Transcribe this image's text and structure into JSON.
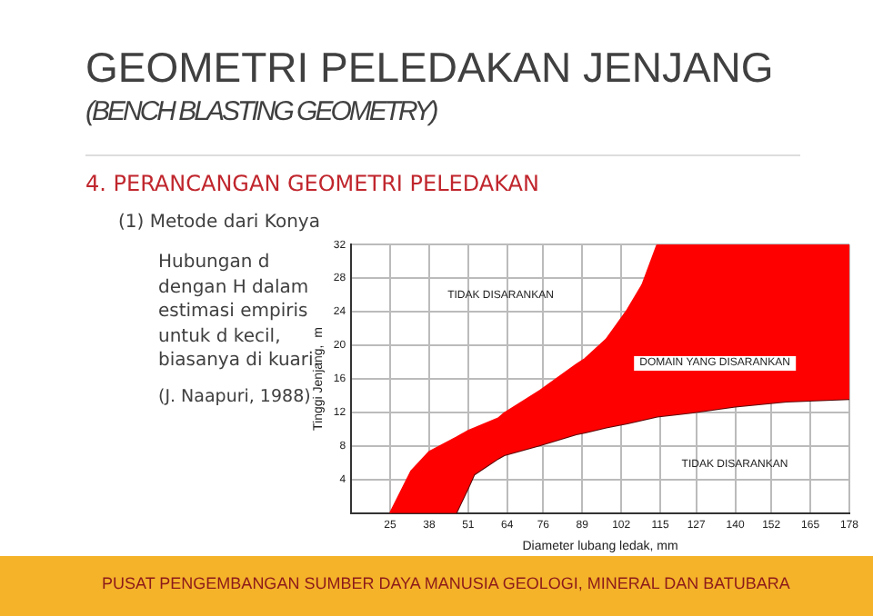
{
  "chart_data": {
    "type": "area",
    "title": "GEOMETRI PELEDAKAN JENJANG",
    "subtitle": "(BENCH BLASTING GEOMETRY)",
    "xlabel": "Diameter lubang ledak, mm",
    "ylabel": "Tinggi Jenjang,  m",
    "annotations": [
      "4. PERANCANGAN GEOMETRI PELEDAKAN",
      "(1) Metode dari Konya",
      "Hubungan d dengan H dalam estimasi empiris untuk d kecil, biasanya di kuari.",
      "(J. Naapuri, 1988)",
      "PUSAT PENGEMBANGAN SUMBER DAYA MANUSIA GEOLOGI, MINERAL DAN BATUBARA",
      "TIDAK DISARANKAN",
      "DOMAIN YANG DISARANKAN",
      "TIDAK DISARANKAN"
    ],
    "series": [
      {
        "color": "#ff0000",
        "x": [
          25,
          32,
          38,
          47,
          51,
          53,
          61,
          63,
          75,
          87,
          90,
          97,
          104,
          109,
          114,
          124,
          140,
          157,
          178
        ],
        "values": [
          0,
          5,
          7.3,
          9,
          9.8,
          10.1,
          11.3,
          11.9,
          14.6,
          17.7,
          18.4,
          20.7,
          24.2,
          27.2,
          32,
          32,
          32,
          32,
          32
        ]
      },
      {
        "type": "line",
        "color": "#5a0000",
        "x": [
          25,
          32,
          38,
          47,
          51,
          53,
          61,
          63,
          75,
          87,
          90,
          97,
          104,
          109,
          114,
          124,
          140,
          157,
          178
        ],
        "values": [
          0,
          null,
          null,
          0,
          3,
          4.6,
          6.5,
          6.9,
          8.1,
          9.4,
          9.6,
          10.2,
          10.7,
          11.1,
          11.5,
          11.9,
          12.7,
          13.3,
          13.6
        ]
      }
    ],
    "xlim": [
      12,
      178
    ],
    "xticks": [
      25,
      38,
      51,
      64,
      76,
      89,
      102,
      115,
      127,
      140,
      152,
      165,
      178
    ],
    "ylim": [
      0,
      32
    ],
    "yticks": [
      4,
      8,
      12,
      16,
      20,
      24,
      28,
      32
    ],
    "grid": true,
    "legend": false
  }
}
